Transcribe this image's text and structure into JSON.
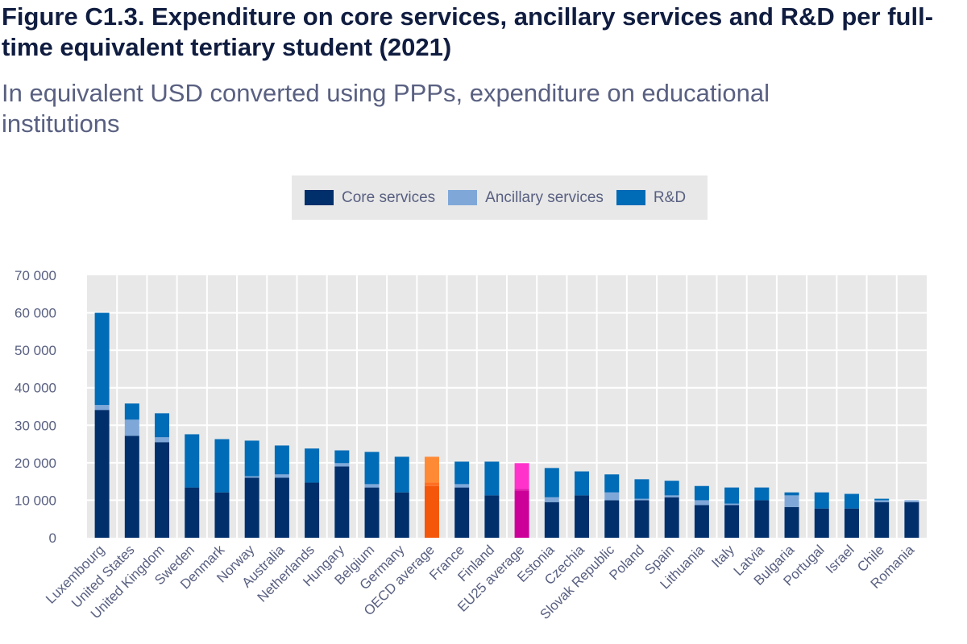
{
  "chart_data": {
    "type": "bar",
    "stacked": true,
    "title": "Figure C1.3. Expenditure on core services, ancillary services and R&D per full-time equivalent tertiary student (2021)",
    "subtitle": "In equivalent USD converted using PPPs, expenditure on educational institutions",
    "xlabel": "",
    "ylabel": "",
    "ylim": [
      0,
      70000
    ],
    "yticks": [
      0,
      10000,
      20000,
      30000,
      40000,
      50000,
      60000,
      70000
    ],
    "ytick_labels": [
      "0",
      "10 000",
      "20 000",
      "30 000",
      "40 000",
      "50 000",
      "60 000",
      "70 000"
    ],
    "grid": true,
    "legend_position": "top-center",
    "categories": [
      "Luxembourg",
      "United States",
      "United Kingdom",
      "Sweden",
      "Denmark",
      "Norway",
      "Australia",
      "Netherlands",
      "Hungary",
      "Belgium",
      "Germany",
      "OECD average",
      "France",
      "Finland",
      "EU25 average",
      "Estonia",
      "Czechia",
      "Slovak Republic",
      "Poland",
      "Spain",
      "Lithuania",
      "Italy",
      "Latvia",
      "Bulgaria",
      "Portugal",
      "Israel",
      "Chile",
      "Romania"
    ],
    "series": [
      {
        "name": "Core services",
        "color": "#002f6c",
        "values": [
          34100,
          27200,
          25500,
          13400,
          12100,
          16000,
          16000,
          14700,
          19000,
          13400,
          12100,
          13800,
          13400,
          11300,
          12600,
          9500,
          11300,
          10000,
          10000,
          10800,
          8700,
          8700,
          10000,
          8200,
          7800,
          7800,
          9500,
          9500
        ]
      },
      {
        "name": "Ancillary services",
        "color": "#7fa8d9",
        "values": [
          1300,
          4300,
          1300,
          0,
          0,
          400,
          900,
          0,
          900,
          900,
          0,
          900,
          900,
          0,
          400,
          1300,
          0,
          2100,
          400,
          500,
          1300,
          400,
          0,
          3100,
          0,
          0,
          500,
          500
        ]
      },
      {
        "name": "R&D",
        "color": "#006bb6",
        "values": [
          24600,
          4300,
          6400,
          14200,
          14200,
          9500,
          7700,
          9100,
          3400,
          8600,
          9500,
          6900,
          6000,
          9000,
          6900,
          7800,
          6400,
          4800,
          5200,
          3900,
          3800,
          4300,
          3400,
          800,
          4300,
          3900,
          400,
          0
        ]
      }
    ],
    "highlight": {
      "OECD average": {
        "core": "#f4560a",
        "ancillary": "#ff6f24",
        "rd": "#ff8a36"
      },
      "EU25 average": {
        "core": "#cc0099",
        "ancillary": "#e01aad",
        "rd": "#ff33cc"
      }
    }
  }
}
